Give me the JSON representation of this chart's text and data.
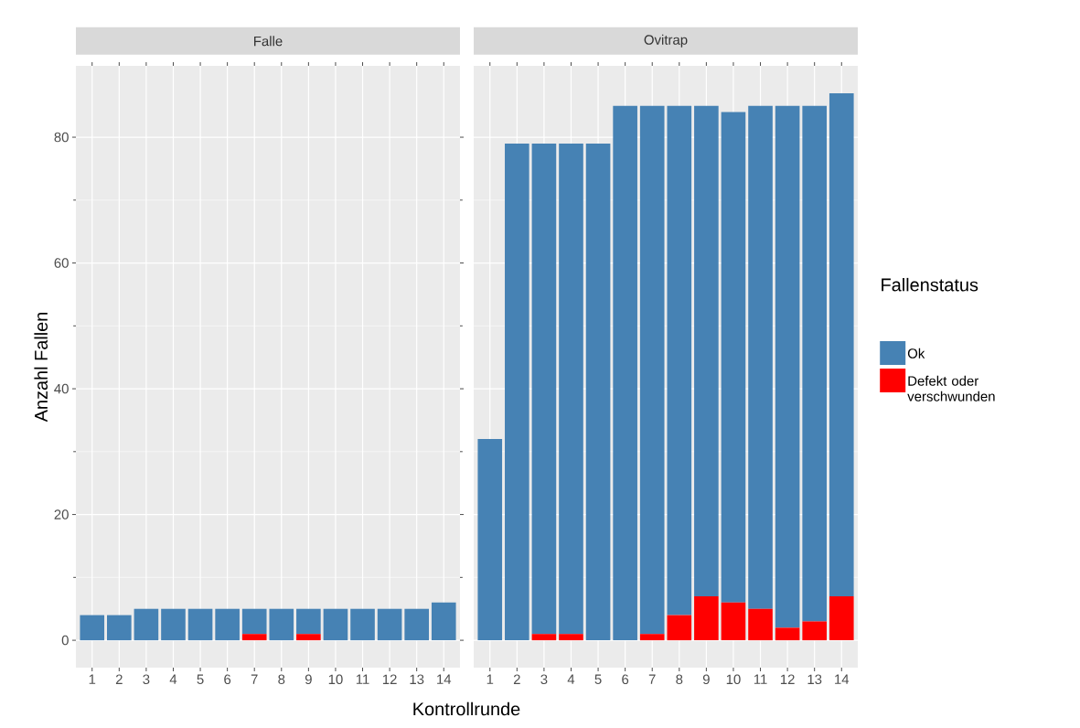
{
  "chart_data": [
    {
      "type": "bar",
      "title": "Falle",
      "xlabel": "Kontrollrunde",
      "ylabel": "Anzahl Fallen",
      "stacked": true,
      "grid": true,
      "categories": [
        "1",
        "2",
        "3",
        "4",
        "5",
        "6",
        "7",
        "8",
        "9",
        "10",
        "11",
        "12",
        "13",
        "14"
      ],
      "ylim": [
        -4.35,
        91.35
      ],
      "yticks": [
        0,
        20,
        40,
        60,
        80
      ],
      "series": [
        {
          "color": "#ff0000",
          "values": [
            0,
            0,
            0,
            0,
            0,
            0,
            1,
            0,
            1,
            0,
            0,
            0,
            0,
            0
          ]
        },
        {
          "color": "#4682b4",
          "values": [
            4,
            4,
            5,
            5,
            5,
            5,
            4,
            5,
            4,
            5,
            5,
            5,
            5,
            6
          ]
        }
      ]
    },
    {
      "type": "bar",
      "title": "Ovitrap",
      "stacked": true,
      "grid": true,
      "tick_labels": "x",
      "legend": "right",
      "legend_title": "Fallenstatus",
      "categories": [
        "1",
        "2",
        "3",
        "4",
        "5",
        "6",
        "7",
        "8",
        "9",
        "10",
        "11",
        "12",
        "13",
        "14"
      ],
      "ylim": [
        -4.35,
        91.35
      ],
      "yticks": [
        0,
        20,
        40,
        60,
        80
      ],
      "series": [
        {
          "name": "Defekt oder verschwunden",
          "color": "#ff0000",
          "values": [
            0,
            0,
            1,
            1,
            0,
            0,
            1,
            4,
            7,
            6,
            5,
            2,
            3,
            7
          ]
        },
        {
          "name": "Ok",
          "color": "#4682b4",
          "values": [
            32,
            79,
            78,
            78,
            79,
            85,
            84,
            81,
            78,
            78,
            80,
            83,
            82,
            80
          ]
        }
      ]
    }
  ]
}
